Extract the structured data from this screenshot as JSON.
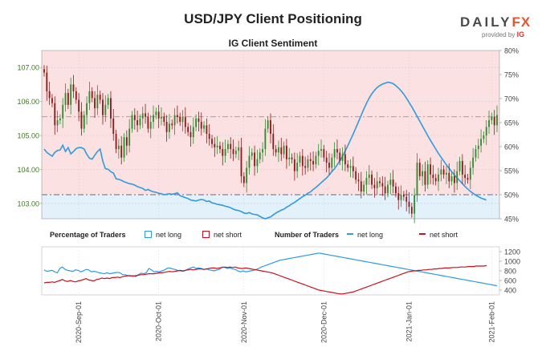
{
  "header": {
    "title": "USD/JPY Client Positioning",
    "subtitle": "IG Client Sentiment",
    "brand_daily": "DAILY",
    "brand_fx": "FX",
    "provided_by": "provided by",
    "provided_logo": "IG"
  },
  "legend": {
    "pct_title": "Percentage of Traders",
    "num_title": "Number of Traders",
    "net_long": "net long",
    "net_short": "net short"
  },
  "colors": {
    "net_long": "#2f9be0",
    "net_short": "#c8101e",
    "short_zone": "#fbe1e1",
    "long_zone": "#e3f1fb",
    "up_candle": "#2e8b2e",
    "down_candle": "#8b1a1a",
    "axis_label": "#3a7a1a"
  },
  "chart_data": [
    {
      "type": "candlestick",
      "name": "USD/JPY price",
      "y_axis_left": {
        "ticks": [
          "103.00",
          "104.00",
          "105.00",
          "106.00",
          "107.00"
        ],
        "ylim": [
          102.55,
          107.5
        ]
      },
      "y_axis_right": {
        "ticks": [
          "45%",
          "50%",
          "55%",
          "60%",
          "65%",
          "70%",
          "75%",
          "80%"
        ],
        "ylim": [
          45,
          80
        ]
      },
      "x_ticks": [
        "2020-Sep-01",
        "2020-Oct-01",
        "2020-Nov-01",
        "2020-Dec-01",
        "2021-Jan-01",
        "2021-Feb-01"
      ],
      "x_tick_index": [
        13,
        43,
        75,
        105,
        137,
        168
      ],
      "close": [
        106.85,
        106.3,
        106.1,
        105.95,
        105.3,
        105.45,
        105.5,
        105.9,
        106.25,
        105.9,
        106.5,
        106.3,
        106.05,
        105.7,
        105.2,
        105.6,
        105.95,
        106.3,
        106.1,
        105.8,
        106.2,
        106.05,
        105.6,
        105.9,
        106.1,
        105.5,
        105.05,
        104.6,
        104.7,
        104.35,
        104.95,
        104.7,
        105.2,
        105.6,
        105.45,
        105.3,
        105.5,
        105.65,
        105.55,
        105.2,
        105.4,
        105.6,
        105.7,
        105.5,
        105.55,
        105.4,
        105.1,
        105.35,
        105.3,
        105.6,
        105.55,
        105.4,
        105.55,
        105.25,
        105.1,
        104.95,
        105.25,
        105.5,
        105.4,
        105.2,
        105.3,
        105.05,
        104.9,
        104.75,
        104.65,
        104.7,
        104.6,
        104.4,
        104.6,
        104.75,
        104.6,
        104.45,
        104.55,
        104.65,
        103.8,
        103.6,
        104.05,
        104.4,
        104.5,
        104.1,
        104.3,
        104.5,
        104.6,
        105.2,
        105.45,
        105.05,
        104.6,
        104.5,
        104.65,
        104.45,
        104.7,
        104.3,
        104.35,
        104.3,
        103.95,
        104.2,
        104.4,
        104.1,
        104.05,
        104.3,
        104.25,
        104.15,
        104.4,
        104.55,
        104.6,
        104.35,
        104.2,
        104.05,
        104.35,
        104.6,
        104.5,
        104.25,
        104.45,
        104.15,
        104.05,
        104.1,
        103.95,
        103.7,
        103.65,
        103.35,
        103.55,
        103.75,
        103.85,
        103.55,
        103.45,
        103.65,
        103.6,
        103.5,
        103.3,
        103.55,
        103.7,
        103.5,
        103.3,
        103.1,
        103.25,
        103.2,
        103.05,
        102.9,
        102.7,
        103.25,
        104.2,
        103.8,
        103.95,
        103.55,
        104.15,
        103.85,
        103.75,
        103.65,
        103.85,
        104.0,
        103.85,
        103.9,
        103.65,
        103.8,
        103.6,
        103.95,
        104.25,
        103.85,
        103.75,
        103.7,
        104.05,
        104.35,
        104.6,
        104.7,
        104.9,
        105.0,
        105.25,
        105.45,
        105.55,
        105.3,
        105.6
      ],
      "net_long_pct": [
        59.5,
        58.8,
        58.4,
        58.0,
        58.8,
        59.2,
        59.3,
        60.3,
        59.0,
        59.8,
        58.5,
        59.0,
        59.6,
        59.8,
        59.8,
        59.5,
        58.4,
        57.6,
        57.4,
        58.2,
        59.0,
        59.5,
        57.0,
        55.4,
        55.3,
        54.8,
        54.5,
        53.3,
        53.2,
        53.0,
        52.7,
        52.5,
        52.3,
        52.2,
        52.0,
        51.7,
        51.5,
        51.3,
        50.9,
        51.1,
        50.8,
        50.6,
        50.5,
        50.3,
        50.2,
        50.0,
        50.1,
        50.2,
        50.1,
        50.2,
        50.4,
        49.8,
        49.6,
        49.4,
        49.2,
        48.9,
        48.8,
        48.7,
        48.9,
        49.0,
        48.9,
        48.6,
        48.7,
        48.3,
        48.2,
        48.0,
        47.9,
        47.8,
        47.6,
        47.5,
        47.3,
        47.0,
        46.8,
        46.7,
        46.5,
        46.2,
        46.1,
        46.3,
        46.0,
        45.9,
        45.8,
        45.5,
        45.2,
        45.0,
        45.2,
        45.4,
        45.8,
        46.2,
        46.5,
        46.8,
        47.0,
        47.4,
        47.7,
        48.1,
        48.4,
        48.8,
        49.2,
        49.6,
        49.9,
        50.3,
        50.6,
        51.1,
        51.5,
        52.0,
        52.5,
        53.0,
        53.5,
        54.1,
        54.8,
        55.4,
        56.2,
        57.1,
        58.0,
        59.1,
        60.2,
        61.4,
        62.6,
        63.9,
        65.2,
        66.5,
        67.8,
        69.0,
        70.1,
        71.0,
        71.7,
        72.3,
        72.7,
        73.0,
        73.2,
        73.4,
        73.3,
        73.1,
        72.7,
        72.2,
        71.6,
        70.9,
        70.1,
        69.2,
        68.3,
        67.3,
        66.3,
        65.3,
        64.3,
        63.3,
        62.3,
        61.3,
        60.4,
        59.5,
        58.6,
        57.8,
        57.0,
        56.2,
        55.5,
        54.8,
        54.1,
        53.5,
        52.9,
        52.3,
        51.7,
        51.2,
        50.7,
        50.3,
        49.9,
        49.6,
        49.3,
        49.1,
        48.9
      ],
      "net_short_pct": [
        40.5,
        41.2,
        41.6,
        42.0,
        41.2,
        40.8,
        40.7,
        39.7,
        41.0,
        40.2,
        41.5,
        41.0,
        40.4,
        40.2,
        40.2,
        40.5,
        41.6,
        42.4,
        42.6,
        41.8,
        41.0,
        40.5,
        43.0,
        44.6,
        44.7,
        45.2,
        45.5,
        46.7,
        46.8,
        47.0,
        47.3,
        47.5,
        47.7,
        47.8,
        48.0,
        48.3,
        48.5,
        48.7,
        49.1,
        48.9,
        49.2,
        49.4,
        49.5,
        49.7,
        49.8,
        50.0,
        49.9,
        49.8,
        49.9,
        49.8,
        49.6,
        50.2,
        50.4,
        50.6,
        50.8,
        51.1,
        51.2,
        51.3,
        51.1,
        51.0,
        51.1,
        51.4,
        51.3,
        51.7,
        51.8,
        52.0,
        52.1,
        52.2,
        52.4,
        52.5,
        52.7,
        53.0,
        53.2,
        53.3,
        53.5,
        53.8,
        53.9,
        53.7,
        54.0,
        54.1,
        54.2,
        54.5,
        54.8,
        55.0,
        54.8,
        54.6,
        54.2,
        53.8,
        53.5,
        53.2,
        53.0,
        52.6,
        52.3,
        51.9,
        51.6,
        51.2,
        50.8,
        50.4,
        50.1,
        49.7,
        49.4,
        48.9,
        48.5,
        48.0,
        47.5,
        47.0,
        46.5,
        45.9,
        45.2,
        44.6,
        43.8,
        42.9,
        42.0,
        40.9,
        39.8,
        38.6,
        37.4,
        36.1,
        34.8,
        33.5,
        32.2,
        31.0,
        29.9,
        29.0,
        28.3,
        27.7,
        27.3,
        27.0,
        26.8,
        26.6,
        26.7,
        26.9,
        27.3,
        27.8,
        28.4,
        29.1,
        29.9,
        30.8,
        31.7,
        32.7,
        33.7,
        34.7,
        35.7,
        36.7,
        37.7,
        38.7,
        39.6,
        40.5,
        41.4,
        42.2,
        43.0,
        43.8,
        44.5,
        45.2,
        45.9,
        46.5,
        47.1,
        47.7,
        48.3,
        48.8,
        49.3,
        49.7,
        50.1,
        50.4,
        50.7,
        50.9,
        51.1
      ]
    },
    {
      "type": "line",
      "name": "Number of Traders",
      "y_axis_right": {
        "ticks": [
          "400",
          "600",
          "800",
          "1000",
          "1200"
        ],
        "ylim": [
          300,
          1300
        ]
      },
      "series": [
        {
          "name": "net long",
          "values": [
            820,
            790,
            800,
            810,
            780,
            760,
            850,
            880,
            830,
            810,
            800,
            790,
            820,
            810,
            780,
            800,
            830,
            820,
            780,
            790,
            780,
            760,
            750,
            740,
            760,
            740,
            750,
            760,
            770,
            760,
            720,
            720,
            700,
            690,
            700,
            680,
            720,
            750,
            740,
            760,
            850,
            820,
            780,
            790,
            780,
            800,
            820,
            850,
            860,
            840,
            830,
            810,
            800,
            790,
            810,
            840,
            860,
            880,
            850,
            860,
            850,
            830,
            840,
            820,
            810,
            800,
            820,
            830,
            880,
            870,
            850,
            860,
            840,
            830,
            800,
            780,
            800,
            780,
            790,
            800,
            810,
            830,
            850,
            880,
            900,
            920,
            940,
            960,
            980,
            1000,
            1020,
            1030,
            1040,
            1050,
            1060,
            1070,
            1080,
            1090,
            1100,
            1110,
            1120,
            1130,
            1140,
            1150,
            1160,
            1170,
            1160,
            1150,
            1140,
            1130,
            1120,
            1110,
            1100,
            1090,
            1080,
            1070,
            1060,
            1050,
            1040,
            1030,
            1020,
            1010,
            1000,
            990,
            980,
            970,
            960,
            950,
            940,
            930,
            920,
            910,
            900,
            890,
            880,
            870,
            860,
            850,
            840,
            830,
            820,
            810,
            800,
            790,
            780,
            770,
            760,
            750,
            740,
            730,
            720,
            710,
            700,
            690,
            680,
            670,
            660,
            650,
            640,
            630,
            620,
            610,
            600,
            590,
            580,
            570,
            560,
            550,
            540,
            530,
            520,
            510,
            500,
            490
          ]
        },
        {
          "name": "net short",
          "values": [
            550,
            560,
            560,
            570,
            560,
            580,
            600,
            620,
            590,
            580,
            600,
            580,
            570,
            590,
            600,
            620,
            640,
            610,
            600,
            590,
            620,
            630,
            650,
            640,
            650,
            640,
            660,
            660,
            670,
            660,
            680,
            690,
            700,
            700,
            690,
            700,
            710,
            720,
            720,
            730,
            740,
            740,
            740,
            750,
            760,
            760,
            770,
            780,
            790,
            780,
            790,
            800,
            810,
            800,
            810,
            820,
            830,
            820,
            830,
            840,
            840,
            830,
            840,
            850,
            860,
            860,
            850,
            860,
            870,
            880,
            870,
            880,
            870,
            880,
            860,
            850,
            850,
            860,
            850,
            840,
            830,
            820,
            810,
            800,
            790,
            780,
            770,
            760,
            740,
            720,
            700,
            680,
            660,
            640,
            620,
            600,
            580,
            560,
            540,
            520,
            500,
            480,
            460,
            440,
            420,
            400,
            390,
            380,
            370,
            360,
            350,
            340,
            330,
            320,
            320,
            330,
            340,
            350,
            360,
            380,
            400,
            420,
            440,
            460,
            480,
            500,
            520,
            540,
            560,
            580,
            600,
            620,
            640,
            660,
            680,
            700,
            720,
            740,
            760,
            780,
            790,
            800,
            800,
            810,
            810,
            820,
            820,
            830,
            830,
            840,
            840,
            850,
            850,
            860,
            860,
            860,
            870,
            870,
            870,
            880,
            880,
            880,
            890,
            890,
            890,
            900,
            900,
            900,
            900,
            910
          ]
        }
      ]
    }
  ]
}
